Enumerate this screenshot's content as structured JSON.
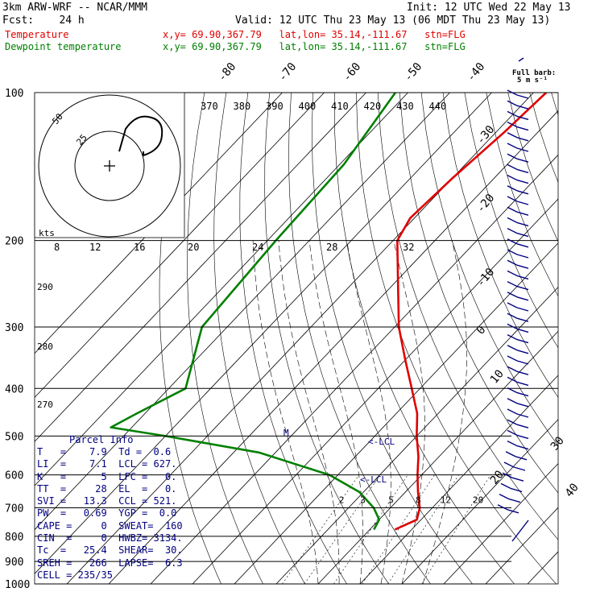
{
  "header": {
    "model": "3km ARW-WRF -- NCAR/MMM",
    "init": "Init: 12 UTC Wed 22 May 13",
    "fcst": "Fcst:    24 h",
    "valid": "Valid: 12 UTC Thu 23 May 13 (06 MDT Thu 23 May 13)",
    "temp_label": "Temperature",
    "dew_label": "Dewpoint temperature",
    "loc_line": "x,y= 69.90,367.79   lat,lon= 35.14,-111.67   stn=FLG",
    "temp_color": "#e00000",
    "dew_color": "#008000"
  },
  "barb_legend": {
    "line1": "Full barb:",
    "line2": "5 m s⁻¹"
  },
  "chart_data": {
    "type": "line",
    "title": "",
    "ylabel": "",
    "y_scale": "log-pressure",
    "ylim": [
      1000,
      100
    ],
    "pressure_levels": [
      "100",
      "200",
      "300",
      "400",
      "500",
      "600",
      "700",
      "800",
      "900",
      "1000"
    ],
    "isotherm_labels_top": [
      "-80",
      "-70",
      "-60",
      "-50",
      "-40"
    ],
    "isotherm_labels_right": [
      "-30",
      "-20",
      "-10",
      "0",
      "10",
      "20",
      "30",
      "40"
    ],
    "theta_labels": [
      "370",
      "380",
      "390",
      "400",
      "410",
      "420",
      "430",
      "440"
    ],
    "hodograph_speed_labels": [
      "8",
      "12",
      "16",
      "20",
      "24",
      "28",
      "32"
    ],
    "hodograph_axis_unit": "kts",
    "hodograph_rings": [
      "25",
      "50"
    ],
    "mixing_ratio_labels": [
      "2",
      "3",
      "5",
      "8",
      "12",
      "20"
    ],
    "theta_left_labels": [
      "290",
      "280",
      "270"
    ],
    "annotations": [
      "M",
      "<-LCL",
      "<-LCL"
    ],
    "series": [
      {
        "name": "Temperature",
        "pressure": [
          100,
          120,
          150,
          180,
          200,
          250,
          300,
          350,
          400,
          450,
          500,
          550,
          600,
          650,
          700,
          740,
          775
        ],
        "temperature": [
          -57,
          -58,
          -60,
          -61,
          -59,
          -48,
          -39,
          -30,
          -22,
          -15,
          -10,
          -5,
          -1,
          3,
          7,
          9,
          6
        ]
      },
      {
        "name": "Dewpoint temperature",
        "pressure": [
          100,
          140,
          200,
          300,
          400,
          450,
          480,
          500,
          540,
          600,
          650,
          700,
          740,
          775
        ],
        "temperature": [
          -93,
          -89,
          -88,
          -86,
          -76,
          -82,
          -85,
          -70,
          -44,
          -22,
          -11,
          -4,
          0,
          1
        ]
      }
    ],
    "wind_barb_levels_count": 40
  },
  "parcel_info": {
    "title": "Parcel Info",
    "rows": [
      "T   =    7.9  Td =  0.6",
      "LI  =    7.1  LCL = 627.",
      "K   =      5  LFC =   0.",
      "TT  =     28  EL  =   0.",
      "SVI =   13.3  CCL = 521.",
      "PW  =   0.69  YGP =  0.0",
      "CAPE =     0  SWEAT=  160",
      "CIN  =     0  HWBZ= 3134.",
      "Tc  =   25.4  SHEAR=  30.",
      "SREH =   266  LAPSE=  6.3",
      "CELL = 235/35"
    ],
    "color": "#000080"
  }
}
